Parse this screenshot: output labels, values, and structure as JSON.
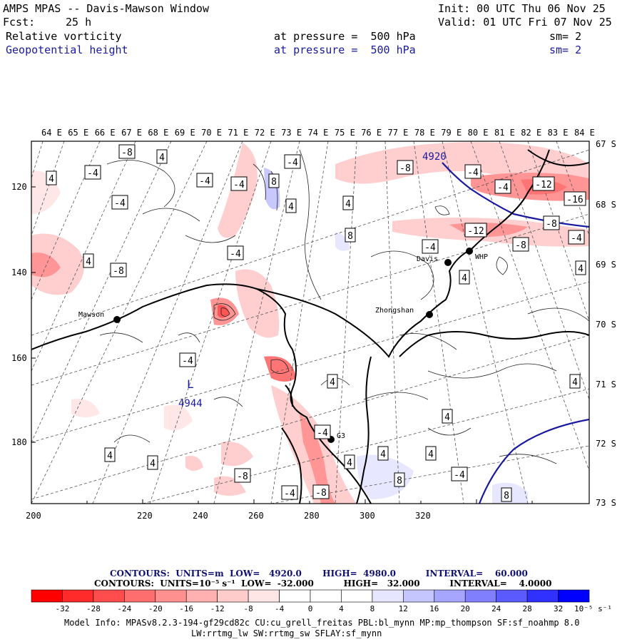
{
  "header": {
    "title": "AMPS MPAS -- Davis-Mawson Window",
    "fcst_label": "Fcst:",
    "fcst_value": "25 h",
    "init": "Init: 00 UTC Thu 06 Nov 25",
    "valid": "Valid: 01 UTC Fri 07 Nov 25",
    "field1": {
      "name": "Relative vorticity",
      "level": "at pressure =  500 hPa",
      "smooth": "sm= 2"
    },
    "field2": {
      "name": "Geopotential height",
      "level": "at pressure =  500 hPa",
      "smooth": "sm= 2"
    }
  },
  "map": {
    "top_longitudes": [
      "64 E",
      "65 E",
      "66 E",
      "67 E",
      "68 E",
      "69 E",
      "70 E",
      "71 E",
      "72 E",
      "73 E",
      "74 E",
      "75 E",
      "76 E",
      "77 E",
      "78 E",
      "79 E",
      "80 E",
      "81 E",
      "82 E",
      "83 E",
      "84 E"
    ],
    "right_latitudes": [
      "67 S",
      "68 S",
      "69 S",
      "70 S",
      "71 S",
      "72 S",
      "73 S"
    ],
    "x_ticks": [
      "200",
      "220",
      "240",
      "260",
      "280",
      "300",
      "320"
    ],
    "y_ticks": [
      "120",
      "140",
      "160",
      "180"
    ],
    "stations": [
      "Mawson",
      "Davis",
      "WHP",
      "Zhongshan",
      "G3"
    ],
    "height_labels": [
      "4920",
      "4944"
    ],
    "low_marker": "L",
    "contour_labels": [
      "-8",
      "4",
      "4",
      "-4",
      "-4",
      "-4",
      "-4",
      "-4",
      "8",
      "4",
      "4",
      "-4",
      "8",
      "4",
      "-8",
      "-8",
      "-4",
      "-4",
      "-12",
      "-16",
      "-12",
      "-8",
      "-4",
      "-8",
      "-4",
      "4",
      "4",
      "-4",
      "4",
      "4",
      "4",
      "4",
      "4",
      "4",
      "4",
      "-4",
      "-8",
      "-4",
      "-8",
      "8",
      "-4",
      "8",
      "4"
    ]
  },
  "footer": {
    "contours_height": "CONTOURS:  UNITS=m  LOW=   4920.0       HIGH=  4980.0          INTERVAL=    60.000",
    "contours_vort": "CONTOURS:  UNITS=10⁻⁵ s⁻¹  LOW=  -32.000          HIGH=   32.000          INTERVAL=    4.0000",
    "colorbar_ticks": [
      "-32",
      "-28",
      "-24",
      "-20",
      "-16",
      "-12",
      "-8",
      "-4",
      "0",
      "4",
      "8",
      "12",
      "16",
      "20",
      "24",
      "28",
      "32"
    ],
    "colorbar_unit": "10⁻⁵ s⁻¹",
    "colorbar_colors": [
      "#ff0000",
      "#ff2a2a",
      "#ff4c4c",
      "#ff6e6e",
      "#ff9090",
      "#ffb0b0",
      "#ffcccc",
      "#ffe6e6",
      "#ffffff",
      "#ffffff",
      "#e6e6ff",
      "#c6c6ff",
      "#a6a6ff",
      "#8080ff",
      "#5a5aff",
      "#3030ff",
      "#0000ff"
    ],
    "model_info_1": "Model Info: MPASv8.2.3-194-gf29cd82c CU:cu_grell_freitas PBL:bl_mynn MP:mp_thompson SF:sf_noahmp 8.0",
    "model_info_2": "LW:rrtmg_lw SW:rrtmg_sw SFLAY:sf_mynn"
  }
}
